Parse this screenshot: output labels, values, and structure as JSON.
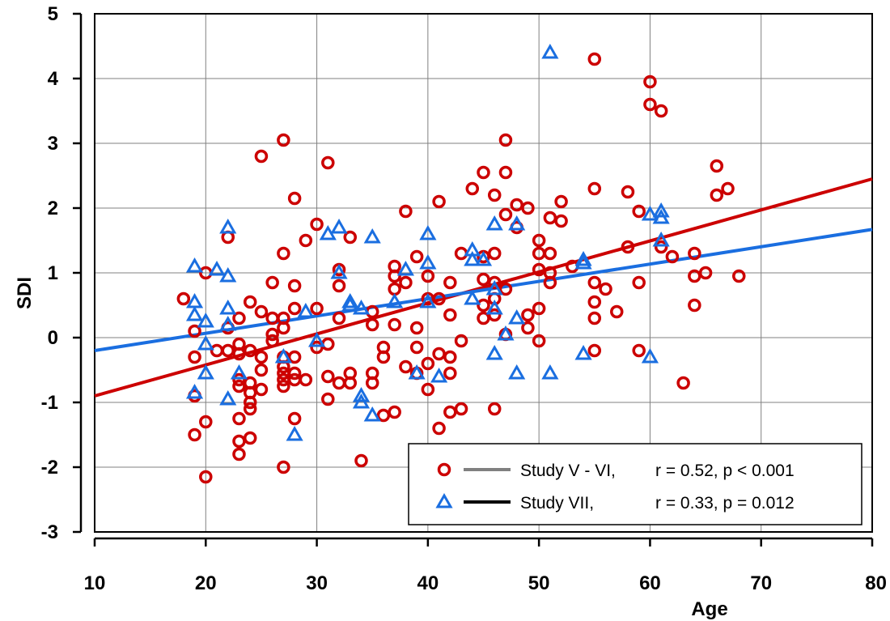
{
  "chart_data": {
    "type": "scatter",
    "xlabel": "Age",
    "ylabel": "SDI",
    "xlim": [
      10,
      80
    ],
    "ylim": [
      -3,
      5
    ],
    "x_ticks": [
      10,
      20,
      30,
      40,
      50,
      60,
      70,
      80
    ],
    "y_ticks": [
      -3,
      -2,
      -1,
      0,
      1,
      2,
      3,
      4,
      5
    ],
    "x_tick_labels": [
      "10",
      "20",
      "30",
      "40",
      "50",
      "60",
      "70",
      "80"
    ],
    "y_tick_labels": [
      "-3",
      "-2",
      "-1",
      "0",
      "1",
      "2",
      "3",
      "4",
      "5"
    ],
    "grid": true,
    "legend_position": "bottom-right",
    "series": [
      {
        "name": "Study V - VI,",
        "stats": "r = 0.52, p < 0.001",
        "marker": "circle",
        "color": "#cc0000",
        "fit_line": {
          "x": [
            10,
            80
          ],
          "y": [
            -0.9,
            2.45
          ]
        },
        "points": [
          [
            18,
            0.6
          ],
          [
            19,
            -0.9
          ],
          [
            19,
            -0.3
          ],
          [
            19,
            0.1
          ],
          [
            19,
            -1.5
          ],
          [
            20,
            1.0
          ],
          [
            20,
            -1.3
          ],
          [
            20,
            -2.15
          ],
          [
            21,
            -0.2
          ],
          [
            22,
            1.55
          ],
          [
            22,
            0.15
          ],
          [
            22,
            -0.2
          ],
          [
            23,
            0.3
          ],
          [
            23,
            -0.1
          ],
          [
            23,
            -0.25
          ],
          [
            23,
            -0.65
          ],
          [
            23,
            -0.75
          ],
          [
            23,
            -1.25
          ],
          [
            23,
            -1.6
          ],
          [
            23,
            -1.8
          ],
          [
            24,
            0.55
          ],
          [
            24,
            -0.7
          ],
          [
            24,
            -0.85
          ],
          [
            24,
            -1.0
          ],
          [
            24,
            -1.1
          ],
          [
            24,
            -1.55
          ],
          [
            24,
            -0.2
          ],
          [
            25,
            2.8
          ],
          [
            25,
            0.4
          ],
          [
            25,
            -0.3
          ],
          [
            25,
            -0.5
          ],
          [
            25,
            -0.8
          ],
          [
            26,
            0.85
          ],
          [
            26,
            0.3
          ],
          [
            26,
            0.05
          ],
          [
            26,
            -0.05
          ],
          [
            27,
            3.05
          ],
          [
            27,
            1.3
          ],
          [
            27,
            0.3
          ],
          [
            27,
            0.15
          ],
          [
            27,
            -0.3
          ],
          [
            27,
            -0.45
          ],
          [
            27,
            -0.55
          ],
          [
            27,
            -0.65
          ],
          [
            27,
            -0.75
          ],
          [
            27,
            -2.0
          ],
          [
            28,
            2.15
          ],
          [
            28,
            0.8
          ],
          [
            28,
            0.45
          ],
          [
            28,
            -0.3
          ],
          [
            28,
            -0.55
          ],
          [
            28,
            -0.65
          ],
          [
            28,
            -1.25
          ],
          [
            29,
            1.5
          ],
          [
            29,
            -0.65
          ],
          [
            30,
            1.75
          ],
          [
            30,
            0.45
          ],
          [
            30,
            -0.15
          ],
          [
            31,
            2.7
          ],
          [
            31,
            -0.1
          ],
          [
            31,
            -0.6
          ],
          [
            31,
            -0.95
          ],
          [
            32,
            1.05
          ],
          [
            32,
            0.8
          ],
          [
            32,
            0.3
          ],
          [
            32,
            -0.7
          ],
          [
            33,
            1.55
          ],
          [
            33,
            -0.55
          ],
          [
            33,
            -0.7
          ],
          [
            34,
            -1.9
          ],
          [
            35,
            0.4
          ],
          [
            35,
            0.2
          ],
          [
            35,
            -0.55
          ],
          [
            35,
            -0.7
          ],
          [
            36,
            -0.15
          ],
          [
            36,
            -0.3
          ],
          [
            36,
            -1.2
          ],
          [
            37,
            1.1
          ],
          [
            37,
            0.95
          ],
          [
            37,
            0.75
          ],
          [
            37,
            0.2
          ],
          [
            37,
            -1.15
          ],
          [
            38,
            1.95
          ],
          [
            38,
            0.85
          ],
          [
            38,
            -0.45
          ],
          [
            39,
            1.25
          ],
          [
            39,
            0.15
          ],
          [
            39,
            -0.15
          ],
          [
            39,
            -0.55
          ],
          [
            40,
            0.95
          ],
          [
            40,
            0.6
          ],
          [
            40,
            -0.4
          ],
          [
            40,
            -0.8
          ],
          [
            41,
            2.1
          ],
          [
            41,
            0.6
          ],
          [
            41,
            -0.25
          ],
          [
            41,
            -1.4
          ],
          [
            42,
            0.85
          ],
          [
            42,
            0.35
          ],
          [
            42,
            -0.3
          ],
          [
            42,
            -0.55
          ],
          [
            42,
            -1.15
          ],
          [
            43,
            1.3
          ],
          [
            43,
            -0.05
          ],
          [
            43,
            -1.1
          ],
          [
            44,
            2.3
          ],
          [
            45,
            2.55
          ],
          [
            45,
            1.25
          ],
          [
            45,
            0.9
          ],
          [
            45,
            0.5
          ],
          [
            45,
            0.3
          ],
          [
            46,
            2.2
          ],
          [
            46,
            1.3
          ],
          [
            46,
            0.85
          ],
          [
            46,
            0.6
          ],
          [
            46,
            0.35
          ],
          [
            46,
            -1.1
          ],
          [
            47,
            3.05
          ],
          [
            47,
            2.55
          ],
          [
            47,
            1.9
          ],
          [
            47,
            0.75
          ],
          [
            47,
            0.05
          ],
          [
            48,
            2.05
          ],
          [
            48,
            1.7
          ],
          [
            49,
            2.0
          ],
          [
            49,
            0.35
          ],
          [
            49,
            0.15
          ],
          [
            50,
            1.5
          ],
          [
            50,
            1.3
          ],
          [
            50,
            1.05
          ],
          [
            50,
            0.45
          ],
          [
            50,
            -0.05
          ],
          [
            51,
            1.85
          ],
          [
            51,
            1.3
          ],
          [
            51,
            1.0
          ],
          [
            51,
            0.85
          ],
          [
            52,
            2.1
          ],
          [
            52,
            1.8
          ],
          [
            53,
            1.1
          ],
          [
            55,
            4.3
          ],
          [
            55,
            2.3
          ],
          [
            55,
            0.85
          ],
          [
            55,
            0.55
          ],
          [
            55,
            0.3
          ],
          [
            55,
            -0.2
          ],
          [
            56,
            0.75
          ],
          [
            57,
            0.4
          ],
          [
            58,
            2.25
          ],
          [
            58,
            1.4
          ],
          [
            59,
            1.95
          ],
          [
            59,
            0.85
          ],
          [
            59,
            -0.2
          ],
          [
            60,
            3.95
          ],
          [
            60,
            3.6
          ],
          [
            61,
            3.5
          ],
          [
            61,
            1.4
          ],
          [
            62,
            1.25
          ],
          [
            63,
            -0.7
          ],
          [
            64,
            1.3
          ],
          [
            64,
            0.95
          ],
          [
            64,
            0.5
          ],
          [
            65,
            1.0
          ],
          [
            66,
            2.65
          ],
          [
            66,
            2.2
          ],
          [
            67,
            2.3
          ],
          [
            68,
            0.95
          ]
        ]
      },
      {
        "name": "Study VII,",
        "stats": "r = 0.33, p = 0.012",
        "marker": "triangle",
        "color": "#1a6ee0",
        "fit_line": {
          "x": [
            10,
            80
          ],
          "y": [
            -0.2,
            1.67
          ]
        },
        "points": [
          [
            19,
            1.1
          ],
          [
            19,
            0.55
          ],
          [
            19,
            0.35
          ],
          [
            19,
            -0.85
          ],
          [
            20,
            0.25
          ],
          [
            20,
            -0.1
          ],
          [
            20,
            -0.55
          ],
          [
            21,
            1.05
          ],
          [
            22,
            1.7
          ],
          [
            22,
            0.95
          ],
          [
            22,
            0.45
          ],
          [
            22,
            0.2
          ],
          [
            22,
            -0.95
          ],
          [
            23,
            -0.55
          ],
          [
            27,
            -0.3
          ],
          [
            28,
            -1.5
          ],
          [
            29,
            0.4
          ],
          [
            30,
            -0.05
          ],
          [
            31,
            1.6
          ],
          [
            32,
            1.7
          ],
          [
            32,
            1.0
          ],
          [
            33,
            0.55
          ],
          [
            33,
            0.5
          ],
          [
            34,
            0.45
          ],
          [
            34,
            -0.9
          ],
          [
            34,
            -1.0
          ],
          [
            35,
            1.55
          ],
          [
            35,
            -1.2
          ],
          [
            37,
            0.55
          ],
          [
            38,
            1.05
          ],
          [
            39,
            -0.55
          ],
          [
            40,
            1.6
          ],
          [
            40,
            1.15
          ],
          [
            40,
            0.55
          ],
          [
            41,
            -0.6
          ],
          [
            44,
            1.35
          ],
          [
            44,
            1.2
          ],
          [
            44,
            0.6
          ],
          [
            45,
            1.2
          ],
          [
            46,
            1.75
          ],
          [
            46,
            0.75
          ],
          [
            46,
            0.45
          ],
          [
            46,
            -0.25
          ],
          [
            47,
            0.05
          ],
          [
            48,
            1.75
          ],
          [
            48,
            0.3
          ],
          [
            48,
            -0.55
          ],
          [
            51,
            4.4
          ],
          [
            51,
            -0.55
          ],
          [
            54,
            1.2
          ],
          [
            54,
            1.15
          ],
          [
            54,
            -0.25
          ],
          [
            60,
            1.9
          ],
          [
            60,
            -0.3
          ],
          [
            61,
            1.95
          ],
          [
            61,
            1.85
          ],
          [
            61,
            1.5
          ]
        ]
      }
    ]
  }
}
